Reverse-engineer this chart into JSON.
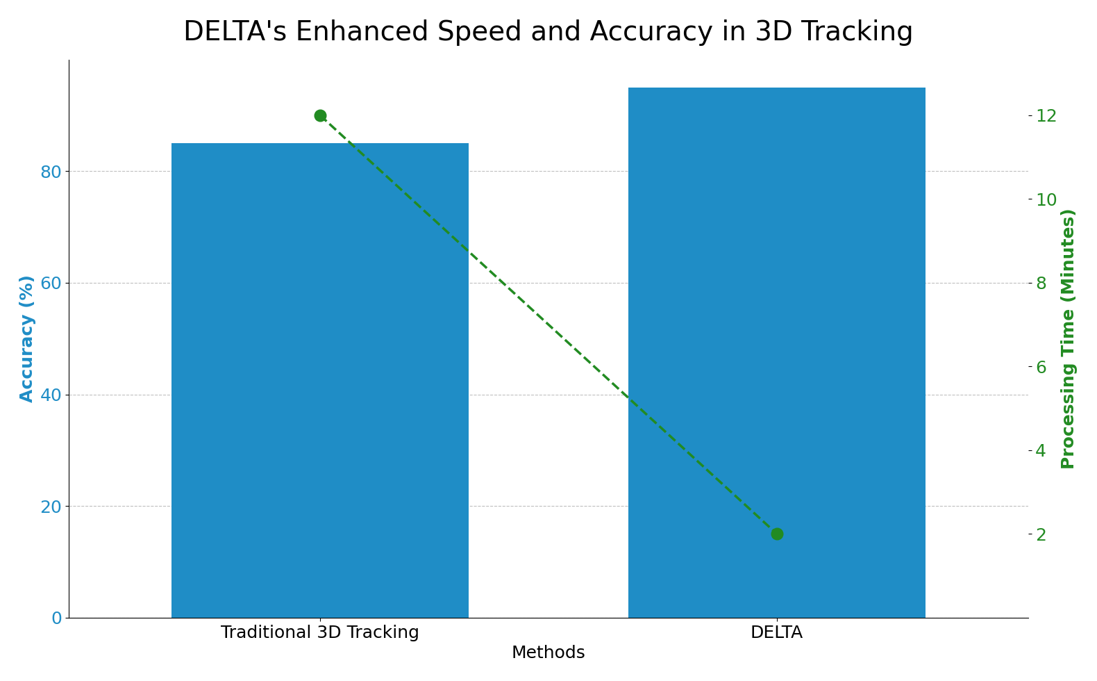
{
  "title": "DELTA's Enhanced Speed and Accuracy in 3D Tracking",
  "xlabel": "Methods",
  "ylabel_left": "Accuracy (%)",
  "ylabel_right": "Processing Time (Minutes)",
  "categories": [
    "Traditional 3D Tracking",
    "DELTA"
  ],
  "accuracy_values": [
    85,
    95
  ],
  "processing_time_values": [
    12,
    2
  ],
  "bar_color": "#1f8dc6",
  "line_color": "#228B22",
  "bar_width": 0.65,
  "ylim_left": [
    0,
    100
  ],
  "ylim_right": [
    0,
    13.333
  ],
  "yticks_left": [
    0,
    20,
    40,
    60,
    80
  ],
  "yticks_right": [
    2,
    4,
    6,
    8,
    10,
    12
  ],
  "title_fontsize": 28,
  "axis_label_fontsize": 18,
  "tick_fontsize": 18,
  "background_color": "#ffffff",
  "x_positions": [
    0,
    1
  ],
  "xlim": [
    -0.55,
    1.55
  ]
}
